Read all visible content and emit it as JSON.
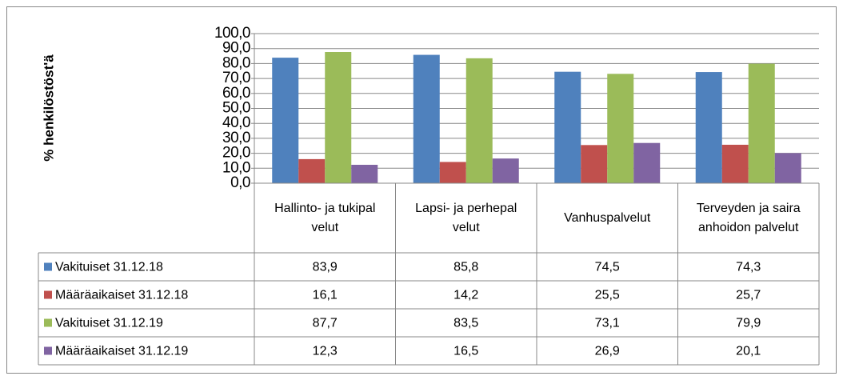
{
  "chart_data": {
    "type": "bar",
    "y_axis_label": "% henkilöstöst'ä",
    "categories": [
      "Hallinto- ja tukipalvelut",
      "Lapsi- ja perhepalvelut",
      "Vanhuspalvelut",
      "Terveyden ja sairaanhoidon palvelut"
    ],
    "series": [
      {
        "name": "Vakituiset 31.12.18",
        "color": "#4f81bd",
        "values": [
          83.9,
          85.8,
          74.5,
          74.3
        ],
        "value_labels": [
          "83,9",
          "85,8",
          "74,5",
          "74,3"
        ]
      },
      {
        "name": "Määräaikaiset 31.12.18",
        "color": "#c0504d",
        "values": [
          16.1,
          14.2,
          25.5,
          25.7
        ],
        "value_labels": [
          "16,1",
          "14,2",
          "25,5",
          "25,7"
        ]
      },
      {
        "name": "Vakituiset 31.12.19",
        "color": "#9bbb59",
        "values": [
          87.7,
          83.5,
          73.1,
          79.9
        ],
        "value_labels": [
          "87,7",
          "83,5",
          "73,1",
          "79,9"
        ]
      },
      {
        "name": "Määräaikaiset 31.12.19",
        "color": "#8064a2",
        "values": [
          12.3,
          16.5,
          26.9,
          20.1
        ],
        "value_labels": [
          "12,3",
          "16,5",
          "26,9",
          "20,1"
        ]
      }
    ],
    "ylim": [
      0,
      100
    ],
    "yticks": [
      {
        "value": 0,
        "label": "0,0"
      },
      {
        "value": 10,
        "label": "10,0"
      },
      {
        "value": 20,
        "label": "20,0"
      },
      {
        "value": 30,
        "label": "30,0"
      },
      {
        "value": 40,
        "label": "40,0"
      },
      {
        "value": 50,
        "label": "50,0"
      },
      {
        "value": 60,
        "label": "60,0"
      },
      {
        "value": 70,
        "label": "70,0"
      },
      {
        "value": 80,
        "label": "80,0"
      },
      {
        "value": 90,
        "label": "90,0"
      },
      {
        "value": 100,
        "label": "100,0"
      }
    ],
    "grid": true
  }
}
